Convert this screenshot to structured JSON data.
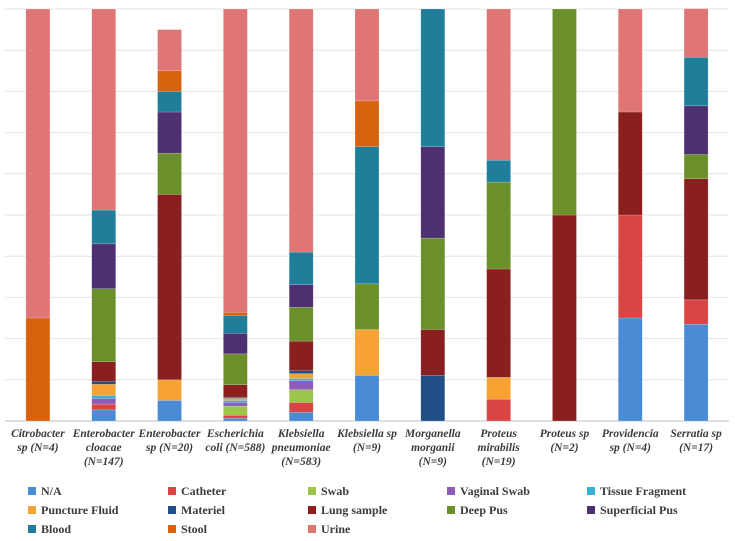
{
  "chart_data": {
    "type": "stacked-bar-100",
    "title": "",
    "xlabel": "",
    "ylabel": "",
    "ylim": [
      0,
      100
    ],
    "grid": true,
    "legend_position": "bottom",
    "categories": [
      [
        "Citrobacter",
        "sp (N=4)"
      ],
      [
        "Enterobacter",
        "cloacae",
        "(N=147)"
      ],
      [
        "Enterobacter",
        "sp (N=20)"
      ],
      [
        "Escherichia",
        "coli (N=588)"
      ],
      [
        "Klebsiella",
        "pneumoniae",
        "(N=583)"
      ],
      [
        "Klebsiella sp",
        "(N=9)"
      ],
      [
        "Morganella",
        "morganii",
        "(N=9)"
      ],
      [
        "Proteus",
        "mirabilis",
        "(N=19)"
      ],
      [
        "Proteus sp",
        "(N=2)"
      ],
      [
        "Providencia",
        "sp (N=4)"
      ],
      [
        "Serratia sp",
        "(N=17)"
      ]
    ],
    "series": [
      {
        "name": "N/A",
        "color": "#4a8bd6",
        "values": [
          0,
          2.7,
          5,
          0.7,
          2.1,
          11.1,
          0,
          0,
          0,
          25,
          23.5
        ]
      },
      {
        "name": "Catheter",
        "color": "#d94545",
        "values": [
          0,
          1.4,
          0,
          0.7,
          2.4,
          0,
          0,
          5.3,
          0,
          25,
          5.9
        ]
      },
      {
        "name": "Swab",
        "color": "#9bc64a",
        "values": [
          0,
          0,
          0,
          2.2,
          3.1,
          0,
          0,
          0,
          0,
          0,
          0
        ]
      },
      {
        "name": "Vaginal Swab",
        "color": "#8e5bb9",
        "values": [
          0,
          1.4,
          0,
          0.9,
          2.2,
          0,
          0,
          0,
          0,
          0,
          0
        ]
      },
      {
        "name": "Tissue Fragment",
        "color": "#37b1d2",
        "values": [
          0,
          0.7,
          0,
          0.5,
          0.5,
          0,
          0,
          0,
          0,
          0,
          0
        ]
      },
      {
        "name": "Puncture Fluid",
        "color": "#f7a333",
        "values": [
          0,
          2.7,
          5,
          0.5,
          1.2,
          11.1,
          0,
          5.3,
          0,
          0,
          0
        ]
      },
      {
        "name": "Materiel",
        "color": "#1f4f86",
        "values": [
          0,
          0.7,
          0,
          0.3,
          0.7,
          0,
          11.1,
          0,
          0,
          0,
          0
        ]
      },
      {
        "name": "Lung sample",
        "color": "#8a1f1f",
        "values": [
          0,
          4.8,
          45,
          3,
          7.2,
          0,
          11.1,
          26.3,
          50,
          25,
          29.4
        ]
      },
      {
        "name": "Deep Pus",
        "color": "#6b8f2a",
        "values": [
          0,
          17.7,
          10,
          7.5,
          8.2,
          11.1,
          22.2,
          21.1,
          50,
          0,
          5.9
        ]
      },
      {
        "name": "Superficial Pus",
        "color": "#4e3072",
        "values": [
          0,
          10.9,
          10,
          5,
          5.5,
          0,
          22.2,
          0,
          0,
          0,
          11.8
        ]
      },
      {
        "name": "Blood",
        "color": "#1f7f9a",
        "values": [
          0,
          8.2,
          5,
          4.3,
          7.9,
          33.3,
          33.4,
          5.3,
          0,
          0,
          11.8
        ]
      },
      {
        "name": "Stool",
        "color": "#d9620f",
        "values": [
          25,
          0,
          5,
          0.8,
          0,
          11.1,
          0,
          0,
          0,
          0,
          0
        ]
      },
      {
        "name": "Urine",
        "color": "#e07575",
        "values": [
          75,
          48.8,
          10,
          73.6,
          59.0,
          22.3,
          0,
          36.7,
          0,
          25,
          11.8
        ]
      }
    ]
  },
  "legend": {
    "items": [
      "N/A",
      "Catheter",
      "Swab",
      "Vaginal Swab",
      "Tissue Fragment",
      "Puncture Fluid",
      "Materiel",
      "Lung sample",
      "Deep Pus",
      "Superficial Pus",
      "Blood",
      "Stool",
      "Urine"
    ]
  }
}
